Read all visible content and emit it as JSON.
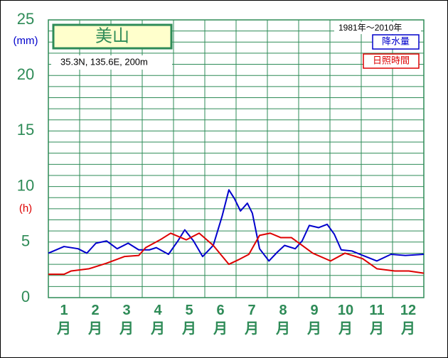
{
  "chart_data": {
    "type": "line",
    "title": "美山",
    "subtitle": "35.3N, 135.6E, 200m",
    "period": "1981年～2010年",
    "y_label": "(mm)",
    "y2_label": "(h)",
    "categories": [
      "1月",
      "2月",
      "3月",
      "4月",
      "5月",
      "6月",
      "7月",
      "8月",
      "9月",
      "10月",
      "11月",
      "12月"
    ],
    "xlim": [
      0,
      12
    ],
    "ylim": [
      0,
      25
    ],
    "yticks": [
      0,
      5,
      10,
      15,
      20,
      25
    ],
    "ygrid": [
      0,
      1,
      2,
      3,
      4,
      5,
      6,
      7,
      8,
      9,
      10,
      11,
      12,
      13,
      14,
      15,
      16,
      17,
      18,
      19,
      20,
      21,
      22,
      23,
      24,
      25
    ],
    "grid": true,
    "series": [
      {
        "name": "降水量",
        "color": "#0000cc",
        "x": [
          0,
          0.5,
          0.95,
          1.23,
          1.52,
          1.86,
          2.2,
          2.55,
          2.89,
          3.23,
          3.45,
          3.84,
          4.14,
          4.36,
          4.64,
          4.93,
          5.27,
          5.55,
          5.77,
          5.95,
          6.14,
          6.36,
          6.52,
          6.75,
          7.05,
          7.32,
          7.55,
          7.89,
          8.11,
          8.34,
          8.64,
          8.91,
          9.14,
          9.36,
          9.7,
          10.05,
          10.5,
          10.95,
          11.41,
          12
        ],
        "values": [
          4.0,
          4.6,
          4.4,
          4.0,
          4.9,
          5.1,
          4.4,
          4.9,
          4.3,
          4.3,
          4.5,
          3.9,
          5.1,
          6.1,
          5.1,
          3.7,
          4.7,
          7.3,
          9.7,
          8.9,
          7.8,
          8.5,
          7.6,
          4.4,
          3.3,
          4.1,
          4.7,
          4.4,
          5.1,
          6.5,
          6.3,
          6.6,
          5.7,
          4.3,
          4.2,
          3.8,
          3.3,
          3.9,
          3.8,
          3.9
        ]
      },
      {
        "name": "日照時間",
        "color": "#dd0000",
        "x": [
          0,
          0.5,
          0.73,
          1.3,
          1.86,
          2.43,
          2.89,
          3.11,
          3.57,
          3.91,
          4.41,
          4.82,
          5.27,
          5.77,
          6.07,
          6.41,
          6.75,
          7.09,
          7.43,
          7.77,
          8.11,
          8.45,
          9.02,
          9.48,
          10.05,
          10.5,
          11.07,
          11.52,
          12
        ],
        "values": [
          2.1,
          2.1,
          2.4,
          2.6,
          3.1,
          3.7,
          3.8,
          4.5,
          5.2,
          5.8,
          5.2,
          5.8,
          4.7,
          3.0,
          3.4,
          3.9,
          5.6,
          5.8,
          5.4,
          5.4,
          4.7,
          4.0,
          3.3,
          4.0,
          3.5,
          2.6,
          2.4,
          2.4,
          2.2
        ]
      }
    ]
  }
}
